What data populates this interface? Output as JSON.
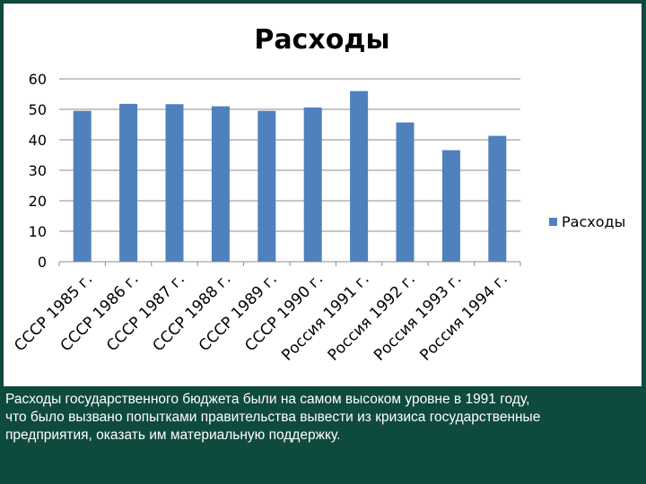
{
  "chart_data": {
    "type": "bar",
    "title": "Расходы",
    "categories": [
      "СССР 1985 г.",
      "СССР 1986 г.",
      "СССР 1987 г.",
      "СССР 1988 г.",
      "СССР 1989 г.",
      "СССР 1990 г.",
      "Россия 1991 г.",
      "Россия 1992 г.",
      "Россия 1993 г.",
      "Россия 1994 г."
    ],
    "series": [
      {
        "name": "Расходы",
        "values": [
          49.5,
          51.8,
          51.7,
          51.0,
          49.5,
          50.6,
          56.0,
          45.7,
          36.6,
          41.3
        ]
      }
    ],
    "yticks": [
      "0",
      "10",
      "20",
      "30",
      "40",
      "50",
      "60"
    ],
    "ylim": [
      0,
      60
    ],
    "grid": true,
    "legend": "right",
    "bar_color": "#4f81bd"
  },
  "caption": {
    "line1": "Расходы государственного бюджета были на самом высоком уровне в 1991 году,",
    "line2": " что было вызвано попытками правительства вывести из кризиса государственные",
    "line3": "предприятия, оказать им материальную поддержку."
  }
}
